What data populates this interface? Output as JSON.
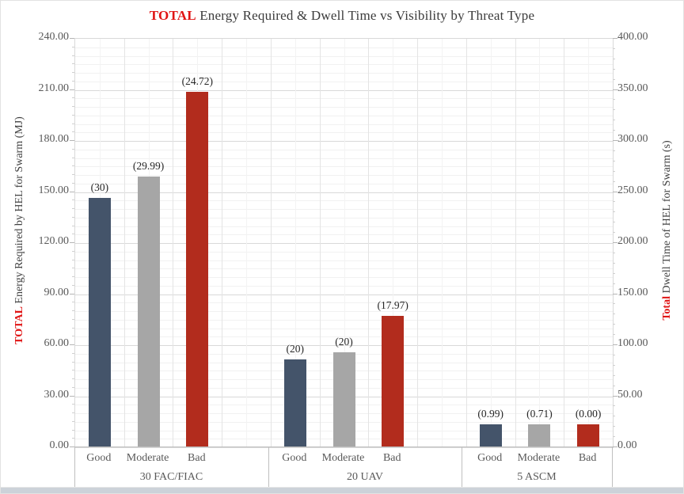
{
  "title": {
    "prefix": "TOTAL",
    "rest": " Energy Required & Dwell Time vs Visibility by Threat Type"
  },
  "window": {
    "bottom_strip_color": "#ccd2d9"
  },
  "chart_data": {
    "type": "bar",
    "title": "TOTAL Energy Required & Dwell Time vs Visibility by Threat Type",
    "legend": "none",
    "grid": "major and minor gridlines, both axes",
    "bar_labels_above": true,
    "left_axis": {
      "title_prefix": "TOTAL",
      "title_rest": " Energy Required by HEL for Swarm (MJ)",
      "min": 0,
      "max": 240,
      "major_step": 30,
      "minor_step": 5,
      "tick_labels": [
        "0.00",
        "30.00",
        "60.00",
        "90.00",
        "120.00",
        "150.00",
        "180.00",
        "210.00",
        "240.00"
      ]
    },
    "right_axis": {
      "title_prefix": "Total",
      "title_rest": " Dwell Time of HEL for Swarm (s)",
      "min": 0,
      "max": 400,
      "major_step": 50,
      "minor_step": 10,
      "tick_labels": [
        "0.00",
        "50.00",
        "100.00",
        "150.00",
        "200.00",
        "250.00",
        "300.00",
        "350.00",
        "400.00"
      ]
    },
    "visibility_levels": [
      "Good",
      "Moderate",
      "Bad"
    ],
    "colors": {
      "Good": "#44546A",
      "Moderate": "#A6A6A6",
      "Bad": "#B22C1D"
    },
    "groups": [
      {
        "label": "30 FAC/FIAC",
        "bars": [
          {
            "visibility": "Good",
            "data_label": "(30)",
            "energy_mj_est": 146.5,
            "dwell_s_est": 244
          },
          {
            "visibility": "Moderate",
            "data_label": "(29.99)",
            "energy_mj_est": 159,
            "dwell_s_est": 265
          },
          {
            "visibility": "Bad",
            "data_label": "(24.72)",
            "energy_mj_est": 209,
            "dwell_s_est": 348
          }
        ]
      },
      {
        "label": "20 UAV",
        "bars": [
          {
            "visibility": "Good",
            "data_label": "(20)",
            "energy_mj_est": 51.5,
            "dwell_s_est": 86
          },
          {
            "visibility": "Moderate",
            "data_label": "(20)",
            "energy_mj_est": 56,
            "dwell_s_est": 93
          },
          {
            "visibility": "Bad",
            "data_label": "(17.97)",
            "energy_mj_est": 77,
            "dwell_s_est": 128
          }
        ]
      },
      {
        "label": "5 ASCM",
        "bars": [
          {
            "visibility": "Good",
            "data_label": "(0.99)",
            "energy_mj_est": 13.5,
            "dwell_s_est": 22.5
          },
          {
            "visibility": "Moderate",
            "data_label": "(0.71)",
            "energy_mj_est": 13.5,
            "dwell_s_est": 22.5
          },
          {
            "visibility": "Bad",
            "data_label": "(0.00)",
            "energy_mj_est": 13.5,
            "dwell_s_est": 22.5
          }
        ]
      }
    ]
  }
}
